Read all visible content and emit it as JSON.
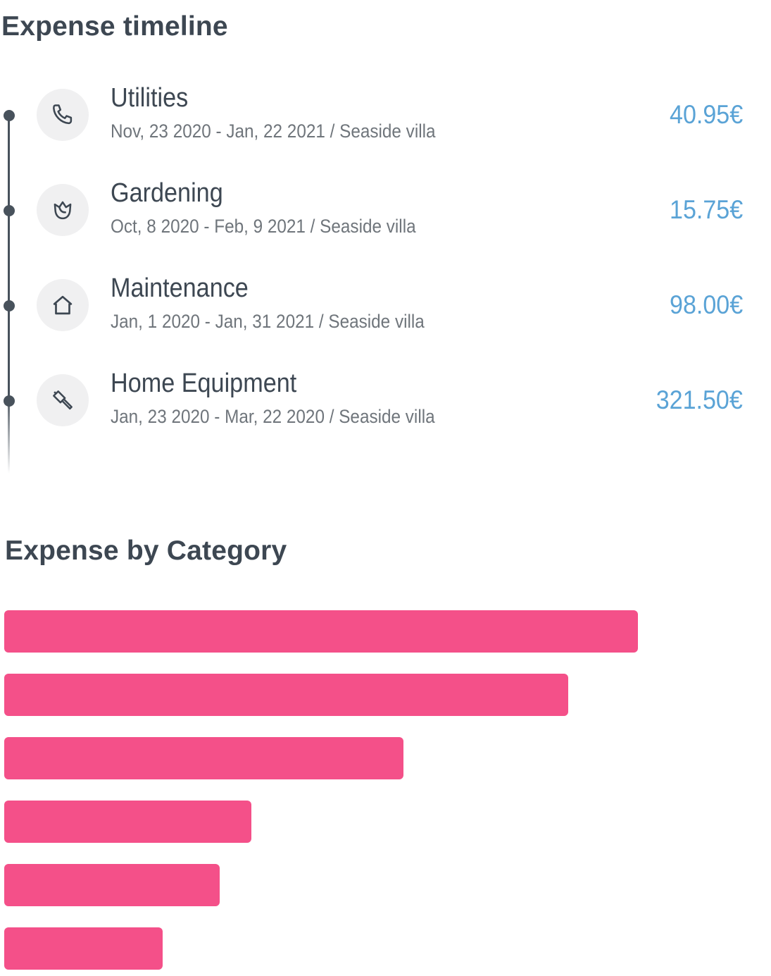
{
  "timeline": {
    "title": "Expense timeline",
    "items": [
      {
        "icon": "phone-icon",
        "title": "Utilities",
        "subtitle": "Nov, 23 2020 - Jan, 22 2021 / Seaside villa",
        "amount": "40.95€"
      },
      {
        "icon": "flower-icon",
        "title": "Gardening",
        "subtitle": "Oct, 8 2020 - Feb, 9 2021 / Seaside villa",
        "amount": "15.75€"
      },
      {
        "icon": "house-icon",
        "title": "Maintenance",
        "subtitle": "Jan, 1 2020 - Jan, 31 2021 / Seaside villa",
        "amount": "98.00€"
      },
      {
        "icon": "hammer-icon",
        "title": "Home Equipment",
        "subtitle": "Jan, 23 2020 - Mar, 22 2020 / Seaside villa",
        "amount": "321.50€"
      }
    ]
  },
  "category": {
    "title": "Expense by Category"
  },
  "chart_data": {
    "type": "bar",
    "orientation": "horizontal",
    "values": [
      100,
      89,
      63,
      39,
      34,
      25
    ],
    "color": "#f45089"
  }
}
